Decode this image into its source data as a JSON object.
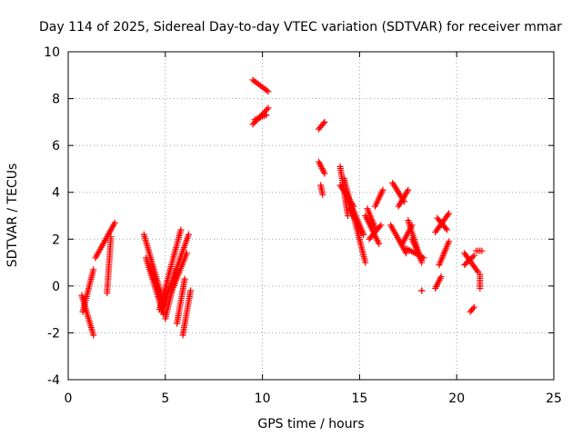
{
  "chart_data": {
    "type": "scatter",
    "title": "Day 114 of 2025, Sidereal Day-to-day VTEC variation (SDTVAR) for receiver mmar",
    "xlabel": "GPS time / hours",
    "ylabel": "SDTVAR / TECUs",
    "xlim": [
      0,
      25
    ],
    "ylim": [
      -4,
      10
    ],
    "xticks": [
      0,
      5,
      10,
      15,
      20,
      25
    ],
    "yticks": [
      -4,
      -2,
      0,
      2,
      4,
      6,
      8,
      10
    ],
    "xtick_labels": [
      "0",
      "5",
      "10",
      "15",
      "20",
      "25"
    ],
    "ytick_labels": [
      "-4",
      "-2",
      "0",
      "2",
      "4",
      "6",
      "8",
      "10"
    ],
    "grid": true,
    "marker": "+",
    "marker_color": "#ff0000",
    "segments": [
      {
        "x": [
          0.7,
          1.3
        ],
        "y": [
          -0.4,
          -2.1
        ]
      },
      {
        "x": [
          0.75,
          1.3
        ],
        "y": [
          -1.1,
          0.7
        ]
      },
      {
        "x": [
          1.4,
          2.4
        ],
        "y": [
          1.2,
          2.7
        ]
      },
      {
        "x": [
          2.0,
          2.2
        ],
        "y": [
          -0.3,
          2.1
        ]
      },
      {
        "x": [
          3.9,
          4.8
        ],
        "y": [
          2.2,
          -0.4
        ]
      },
      {
        "x": [
          4.0,
          4.9
        ],
        "y": [
          1.2,
          -1.2
        ]
      },
      {
        "x": [
          4.2,
          5.0
        ],
        "y": [
          0.8,
          -0.9
        ]
      },
      {
        "x": [
          4.7,
          5.8
        ],
        "y": [
          -1.0,
          2.4
        ]
      },
      {
        "x": [
          4.8,
          6.2
        ],
        "y": [
          -1.1,
          2.2
        ]
      },
      {
        "x": [
          5.0,
          5.6
        ],
        "y": [
          -1.4,
          0.7
        ]
      },
      {
        "x": [
          5.3,
          6.1
        ],
        "y": [
          -0.3,
          1.4
        ]
      },
      {
        "x": [
          5.6,
          6.0
        ],
        "y": [
          -1.6,
          0.3
        ]
      },
      {
        "x": [
          5.9,
          6.3
        ],
        "y": [
          -2.1,
          -0.2
        ]
      },
      {
        "x": [
          9.5,
          10.3
        ],
        "y": [
          8.8,
          8.3
        ]
      },
      {
        "x": [
          9.5,
          10.3
        ],
        "y": [
          6.9,
          7.6
        ]
      },
      {
        "x": [
          9.6,
          10.2
        ],
        "y": [
          7.1,
          7.3
        ]
      },
      {
        "x": [
          12.9,
          13.2
        ],
        "y": [
          6.7,
          7.0
        ]
      },
      {
        "x": [
          12.9,
          13.2
        ],
        "y": [
          5.3,
          4.8
        ]
      },
      {
        "x": [
          13.0,
          13.1
        ],
        "y": [
          4.3,
          3.9
        ]
      },
      {
        "x": [
          14.0,
          14.4
        ],
        "y": [
          5.1,
          3.0
        ]
      },
      {
        "x": [
          14.2,
          15.3
        ],
        "y": [
          4.6,
          1.0
        ]
      },
      {
        "x": [
          14.3,
          15.2
        ],
        "y": [
          4.0,
          2.2
        ]
      },
      {
        "x": [
          14.0,
          14.7
        ],
        "y": [
          4.3,
          3.4
        ]
      },
      {
        "x": [
          14.5,
          15.2
        ],
        "y": [
          3.3,
          2.2
        ]
      },
      {
        "x": [
          15.3,
          16.0
        ],
        "y": [
          3.0,
          1.8
        ]
      },
      {
        "x": [
          15.4,
          15.8
        ],
        "y": [
          3.3,
          2.5
        ]
      },
      {
        "x": [
          15.5,
          16.1
        ],
        "y": [
          2.0,
          2.6
        ]
      },
      {
        "x": [
          15.8,
          16.2
        ],
        "y": [
          3.4,
          4.1
        ]
      },
      {
        "x": [
          16.7,
          17.3
        ],
        "y": [
          4.4,
          3.6
        ]
      },
      {
        "x": [
          16.6,
          17.4
        ],
        "y": [
          2.6,
          1.4
        ]
      },
      {
        "x": [
          17.0,
          17.5
        ],
        "y": [
          3.4,
          4.1
        ]
      },
      {
        "x": [
          17.2,
          17.7
        ],
        "y": [
          1.8,
          2.6
        ]
      },
      {
        "x": [
          17.5,
          18.2
        ],
        "y": [
          2.8,
          1.0
        ]
      },
      {
        "x": [
          17.4,
          18.3
        ],
        "y": [
          1.6,
          1.2
        ]
      },
      {
        "x": [
          17.7,
          18.2
        ],
        "y": [
          2.0,
          1.1
        ]
      },
      {
        "x": [
          18.2,
          18.2
        ],
        "y": [
          -0.2,
          -0.2
        ]
      },
      {
        "x": [
          18.9,
          19.6
        ],
        "y": [
          2.3,
          3.1
        ]
      },
      {
        "x": [
          19.0,
          19.5
        ],
        "y": [
          2.9,
          2.4
        ]
      },
      {
        "x": [
          18.9,
          19.2
        ],
        "y": [
          -0.1,
          0.4
        ]
      },
      {
        "x": [
          19.1,
          19.6
        ],
        "y": [
          0.9,
          1.9
        ]
      },
      {
        "x": [
          20.4,
          21.1
        ],
        "y": [
          1.4,
          0.6
        ]
      },
      {
        "x": [
          20.4,
          20.9
        ],
        "y": [
          0.9,
          1.3
        ]
      },
      {
        "x": [
          21.0,
          21.3
        ],
        "y": [
          1.5,
          1.5
        ]
      },
      {
        "x": [
          20.7,
          20.9
        ],
        "y": [
          -1.1,
          -0.9
        ]
      },
      {
        "x": [
          21.2,
          21.2
        ],
        "y": [
          0.5,
          -0.1
        ]
      }
    ]
  }
}
